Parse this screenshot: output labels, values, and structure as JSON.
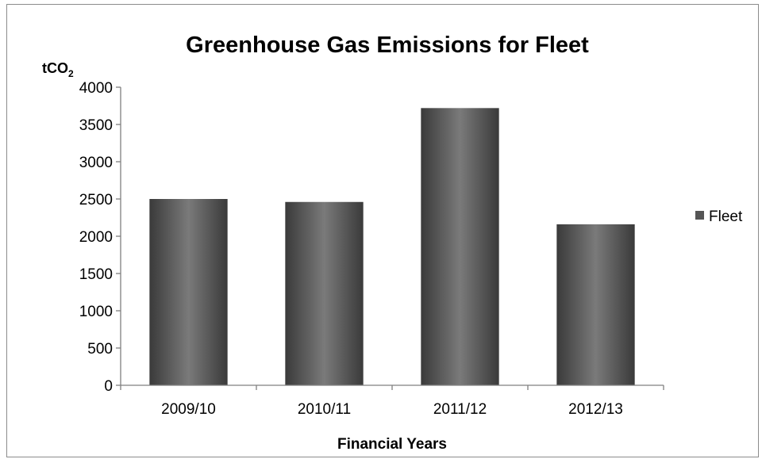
{
  "chart_data": {
    "type": "bar",
    "title": "Greenhouse Gas Emissions for Fleet",
    "ylabel": "tCO",
    "ylabel_subscript": "2",
    "xlabel": "Financial Years",
    "categories": [
      "2009/10",
      "2010/11",
      "2011/12",
      "2012/13"
    ],
    "series": [
      {
        "name": "Fleet",
        "values": [
          2500,
          2460,
          3720,
          2160
        ]
      }
    ],
    "ylim": [
      0,
      4000
    ],
    "yticks": [
      "0",
      "500",
      "1000",
      "1500",
      "2000",
      "2500",
      "3000",
      "3500",
      "4000"
    ],
    "grid": false,
    "legend_position": "right",
    "bar_color": "#555555",
    "bar_highlight_color": "#8a8a8a"
  }
}
